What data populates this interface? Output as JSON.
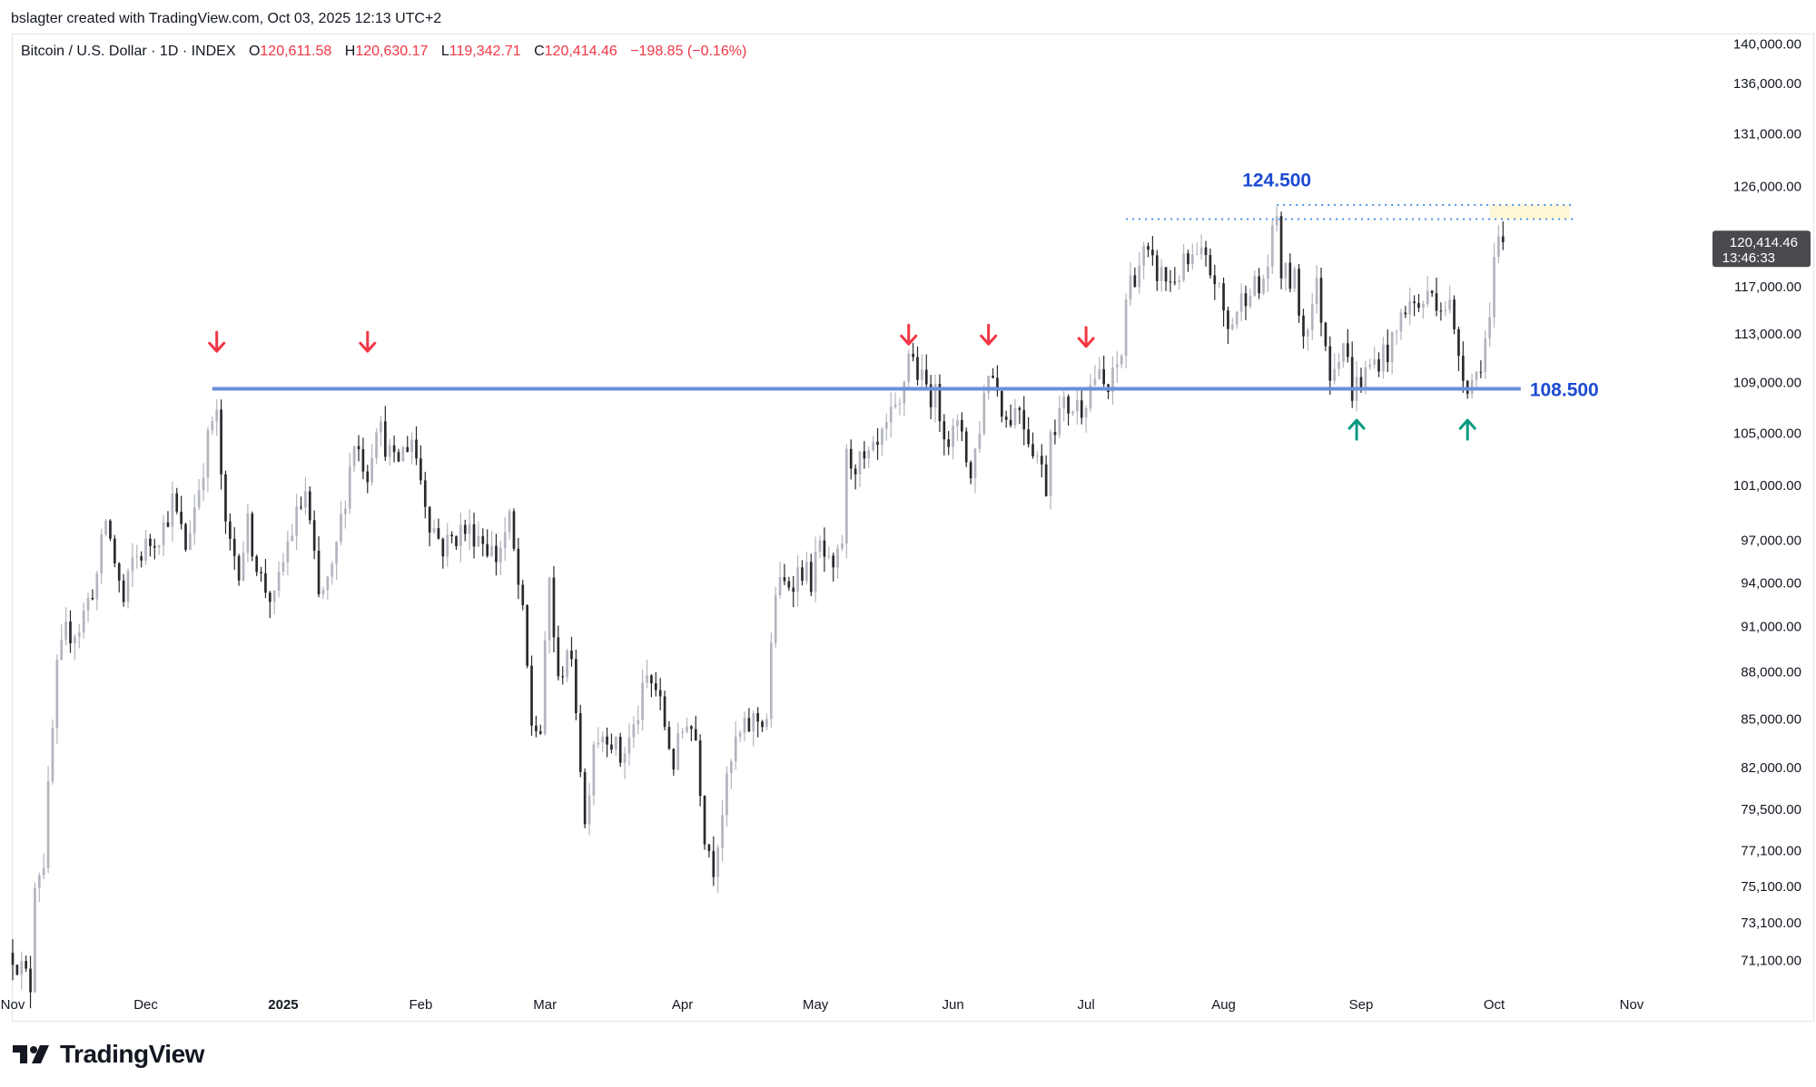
{
  "credit": "bslagter created with TradingView.com, Oct 03, 2025 12:13 UTC+2",
  "brand": "TradingView",
  "legend": {
    "symbol": "Bitcoin / U.S. Dollar · 1D · INDEX",
    "o_label": "O",
    "o": "120,611.58",
    "h_label": "H",
    "h": "120,630.17",
    "l_label": "L",
    "l": "119,342.71",
    "c_label": "C",
    "c": "120,414.46",
    "change": "−198.85 (−0.16%)"
  },
  "price_tag": {
    "price": "120,414.46",
    "countdown": "13:46:33"
  },
  "colors": {
    "up_candle": "#b2b5be",
    "down_candle": "#2a2a2e",
    "support": "#6b8fd9",
    "label_blue": "#1e4bd2",
    "resistance_dots": "#4a8fe0",
    "arrow_red": "#f23645",
    "arrow_green": "#089981",
    "highlight": "#fff8d6"
  },
  "chart_data": {
    "type": "candlestick",
    "x_range": [
      "2024-11-01",
      "2025-11-18"
    ],
    "y_range": [
      69700,
      141000
    ],
    "y_ticks": [
      "140,000.00",
      "136,000.00",
      "131,000.00",
      "126,000.00",
      "117,000.00",
      "113,000.00",
      "109,000.00",
      "105,000.00",
      "101,000.00",
      "97,000.00",
      "94,000.00",
      "91,000.00",
      "88,000.00",
      "85,000.00",
      "82,000.00",
      "79,500.00",
      "77,100.00",
      "75,100.00",
      "73,100.00",
      "71,100.00"
    ],
    "y_tick_values": [
      140000,
      136000,
      131000,
      126000,
      117000,
      113000,
      109000,
      105000,
      101000,
      97000,
      94000,
      91000,
      88000,
      85000,
      82000,
      79500,
      77100,
      75100,
      73100,
      71100
    ],
    "x_ticks": [
      {
        "label": "Nov",
        "date": "2024-11-01",
        "bold": false
      },
      {
        "label": "Dec",
        "date": "2024-12-01",
        "bold": false
      },
      {
        "label": "2025",
        "date": "2025-01-01",
        "bold": true
      },
      {
        "label": "Feb",
        "date": "2025-02-01",
        "bold": false
      },
      {
        "label": "Mar",
        "date": "2025-03-01",
        "bold": false
      },
      {
        "label": "Apr",
        "date": "2025-04-01",
        "bold": false
      },
      {
        "label": "May",
        "date": "2025-05-01",
        "bold": false
      },
      {
        "label": "Jun",
        "date": "2025-06-01",
        "bold": false
      },
      {
        "label": "Jul",
        "date": "2025-07-01",
        "bold": false
      },
      {
        "label": "Aug",
        "date": "2025-08-01",
        "bold": false
      },
      {
        "label": "Sep",
        "date": "2025-09-01",
        "bold": false
      },
      {
        "label": "Oct",
        "date": "2025-10-01",
        "bold": false
      },
      {
        "label": "Nov",
        "date": "2025-11-01",
        "bold": false
      }
    ],
    "support_line": {
      "value": 108500,
      "from": "2024-12-16",
      "to": "2025-10-07",
      "label": "108.500"
    },
    "resistance": {
      "value": 124500,
      "label": "124.500",
      "dotted_levels": [
        {
          "value": 123000,
          "from": "2025-07-10",
          "to": "2025-10-19"
        },
        {
          "value": 124300,
          "from": "2025-08-13",
          "to": "2025-10-19"
        }
      ],
      "highlight": {
        "from": "2025-09-30",
        "to": "2025-10-18",
        "y_low": 123000,
        "y_high": 124300
      }
    },
    "red_arrows": [
      {
        "date": "2024-12-17",
        "value": 112300
      },
      {
        "date": "2025-01-20",
        "value": 112300
      },
      {
        "date": "2025-05-22",
        "value": 112900
      },
      {
        "date": "2025-06-09",
        "value": 112900
      },
      {
        "date": "2025-07-01",
        "value": 112700
      }
    ],
    "green_arrows": [
      {
        "date": "2025-08-31",
        "value": 105300
      },
      {
        "date": "2025-09-25",
        "value": 105300
      }
    ],
    "last_value": 120414.46,
    "path": [
      [
        "2024-11-01",
        71500
      ],
      [
        "2024-11-05",
        69800
      ],
      [
        "2024-11-06",
        75600
      ],
      [
        "2024-11-08",
        76600
      ],
      [
        "2024-11-11",
        88000
      ],
      [
        "2024-11-13",
        90500
      ],
      [
        "2024-11-16",
        91000
      ],
      [
        "2024-11-20",
        94500
      ],
      [
        "2024-11-22",
        98500
      ],
      [
        "2024-11-26",
        92500
      ],
      [
        "2024-11-28",
        95500
      ],
      [
        "2024-12-01",
        96500
      ],
      [
        "2024-12-05",
        98000
      ],
      [
        "2024-12-07",
        99800
      ],
      [
        "2024-12-10",
        96500
      ],
      [
        "2024-12-13",
        101000
      ],
      [
        "2024-12-16",
        106000
      ],
      [
        "2024-12-17",
        106100
      ],
      [
        "2024-12-19",
        97500
      ],
      [
        "2024-12-22",
        95200
      ],
      [
        "2024-12-24",
        98000
      ],
      [
        "2024-12-27",
        94200
      ],
      [
        "2024-12-30",
        92600
      ],
      [
        "2025-01-02",
        96800
      ],
      [
        "2025-01-06",
        100500
      ],
      [
        "2025-01-09",
        92800
      ],
      [
        "2025-01-12",
        94500
      ],
      [
        "2025-01-15",
        100400
      ],
      [
        "2025-01-17",
        104500
      ],
      [
        "2025-01-20",
        102000
      ],
      [
        "2025-01-22",
        106000
      ],
      [
        "2025-01-26",
        102500
      ],
      [
        "2025-01-30",
        104700
      ],
      [
        "2025-02-03",
        98500
      ],
      [
        "2025-02-06",
        96500
      ],
      [
        "2025-02-10",
        97700
      ],
      [
        "2025-02-14",
        97500
      ],
      [
        "2025-02-18",
        95800
      ],
      [
        "2025-02-21",
        98300
      ],
      [
        "2025-02-24",
        91500
      ],
      [
        "2025-02-26",
        84700
      ],
      [
        "2025-02-28",
        84200
      ],
      [
        "2025-03-02",
        94200
      ],
      [
        "2025-03-04",
        87000
      ],
      [
        "2025-03-06",
        89800
      ],
      [
        "2025-03-08",
        86000
      ],
      [
        "2025-03-10",
        78500
      ],
      [
        "2025-03-12",
        83800
      ],
      [
        "2025-03-15",
        84300
      ],
      [
        "2025-03-18",
        82500
      ],
      [
        "2025-03-21",
        84300
      ],
      [
        "2025-03-24",
        87500
      ],
      [
        "2025-03-26",
        86900
      ],
      [
        "2025-03-30",
        82300
      ],
      [
        "2025-04-02",
        85200
      ],
      [
        "2025-04-04",
        83800
      ],
      [
        "2025-04-06",
        78200
      ],
      [
        "2025-04-08",
        76300
      ],
      [
        "2025-04-10",
        79500
      ],
      [
        "2025-04-13",
        83500
      ],
      [
        "2025-04-17",
        84900
      ],
      [
        "2025-04-20",
        85100
      ],
      [
        "2025-04-22",
        93500
      ],
      [
        "2025-04-24",
        93800
      ],
      [
        "2025-04-28",
        95000
      ],
      [
        "2025-04-30",
        94200
      ],
      [
        "2025-05-02",
        96500
      ],
      [
        "2025-05-05",
        94200
      ],
      [
        "2025-05-07",
        97000
      ],
      [
        "2025-05-08",
        103000
      ],
      [
        "2025-05-12",
        102500
      ],
      [
        "2025-05-15",
        103600
      ],
      [
        "2025-05-18",
        106000
      ],
      [
        "2025-05-20",
        106800
      ],
      [
        "2025-05-22",
        111700
      ],
      [
        "2025-05-25",
        109000
      ],
      [
        "2025-05-28",
        107800
      ],
      [
        "2025-05-31",
        104600
      ],
      [
        "2025-06-03",
        105400
      ],
      [
        "2025-06-05",
        101500
      ],
      [
        "2025-06-07",
        105700
      ],
      [
        "2025-06-09",
        110200
      ],
      [
        "2025-06-11",
        108600
      ],
      [
        "2025-06-13",
        106000
      ],
      [
        "2025-06-16",
        107200
      ],
      [
        "2025-06-18",
        104800
      ],
      [
        "2025-06-20",
        103300
      ],
      [
        "2025-06-22",
        101000
      ],
      [
        "2025-06-23",
        105500
      ],
      [
        "2025-06-26",
        107000
      ],
      [
        "2025-06-30",
        107200
      ],
      [
        "2025-07-03",
        109600
      ],
      [
        "2025-07-06",
        108200
      ],
      [
        "2025-07-09",
        111300
      ],
      [
        "2025-07-10",
        116000
      ],
      [
        "2025-07-11",
        117500
      ],
      [
        "2025-07-14",
        119800
      ],
      [
        "2025-07-16",
        118600
      ],
      [
        "2025-07-20",
        117400
      ],
      [
        "2025-07-23",
        118700
      ],
      [
        "2025-07-27",
        119400
      ],
      [
        "2025-07-30",
        117800
      ],
      [
        "2025-08-02",
        113300
      ],
      [
        "2025-08-04",
        115000
      ],
      [
        "2025-08-07",
        117400
      ],
      [
        "2025-08-09",
        116500
      ],
      [
        "2025-08-11",
        119000
      ],
      [
        "2025-08-13",
        123300
      ],
      [
        "2025-08-14",
        118200
      ],
      [
        "2025-08-17",
        117400
      ],
      [
        "2025-08-19",
        113000
      ],
      [
        "2025-08-22",
        116900
      ],
      [
        "2025-08-25",
        110100
      ],
      [
        "2025-08-28",
        112500
      ],
      [
        "2025-08-30",
        108400
      ],
      [
        "2025-09-01",
        109200
      ],
      [
        "2025-09-04",
        110700
      ],
      [
        "2025-09-08",
        112000
      ],
      [
        "2025-09-11",
        115500
      ],
      [
        "2025-09-14",
        115300
      ],
      [
        "2025-09-17",
        116500
      ],
      [
        "2025-09-19",
        115700
      ],
      [
        "2025-09-21",
        115300
      ],
      [
        "2025-09-22",
        112700
      ],
      [
        "2025-09-25",
        109000
      ],
      [
        "2025-09-27",
        109600
      ],
      [
        "2025-09-30",
        114000
      ],
      [
        "2025-10-01",
        118600
      ],
      [
        "2025-10-02",
        120600
      ],
      [
        "2025-10-03",
        120414
      ]
    ]
  }
}
